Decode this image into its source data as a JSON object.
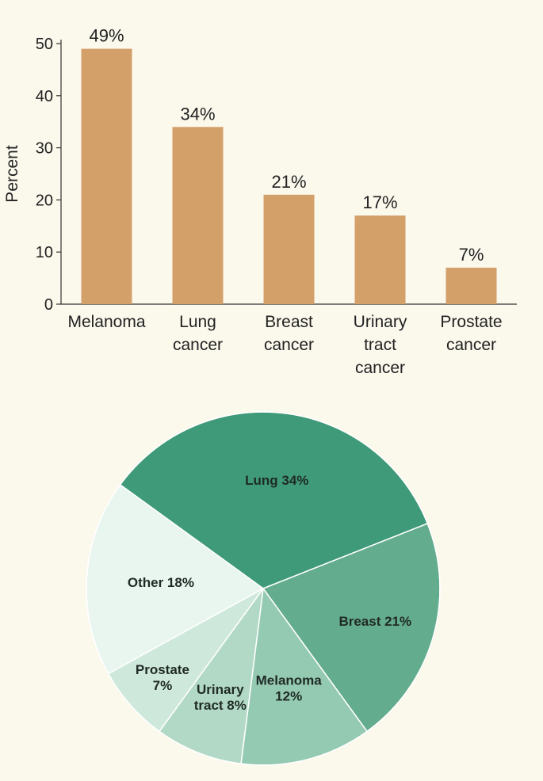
{
  "chart_data": [
    {
      "type": "bar",
      "ylabel": "Percent",
      "ylim": [
        0,
        50
      ],
      "yticks": [
        "0",
        "10",
        "20",
        "30",
        "40",
        "50"
      ],
      "categories": [
        [
          "Melanoma"
        ],
        [
          "Lung",
          "cancer"
        ],
        [
          "Breast",
          "cancer"
        ],
        [
          "Urinary",
          "tract",
          "cancer"
        ],
        [
          "Prostate",
          "cancer"
        ]
      ],
      "values": [
        49,
        34,
        21,
        17,
        7
      ],
      "data_labels": [
        "49%",
        "34%",
        "21%",
        "17%",
        "7%"
      ],
      "grid": false,
      "bar_color": "#d4a06a"
    },
    {
      "type": "pie",
      "slices": [
        {
          "label": [
            "Lung 34%"
          ],
          "value": 34,
          "color": "#3f9a7a"
        },
        {
          "label": [
            "Breast 21%"
          ],
          "value": 21,
          "color": "#64ac8e"
        },
        {
          "label": [
            "Melanoma",
            "12%"
          ],
          "value": 12,
          "color": "#94c9b2"
        },
        {
          "label": [
            "Urinary",
            "tract 8%"
          ],
          "value": 8,
          "color": "#b2d9c6"
        },
        {
          "label": [
            "Prostate",
            "7%"
          ],
          "value": 7,
          "color": "#cfe8dc"
        },
        {
          "label": [
            "Other 18%"
          ],
          "value": 18,
          "color": "#e9f5ef"
        }
      ]
    }
  ]
}
